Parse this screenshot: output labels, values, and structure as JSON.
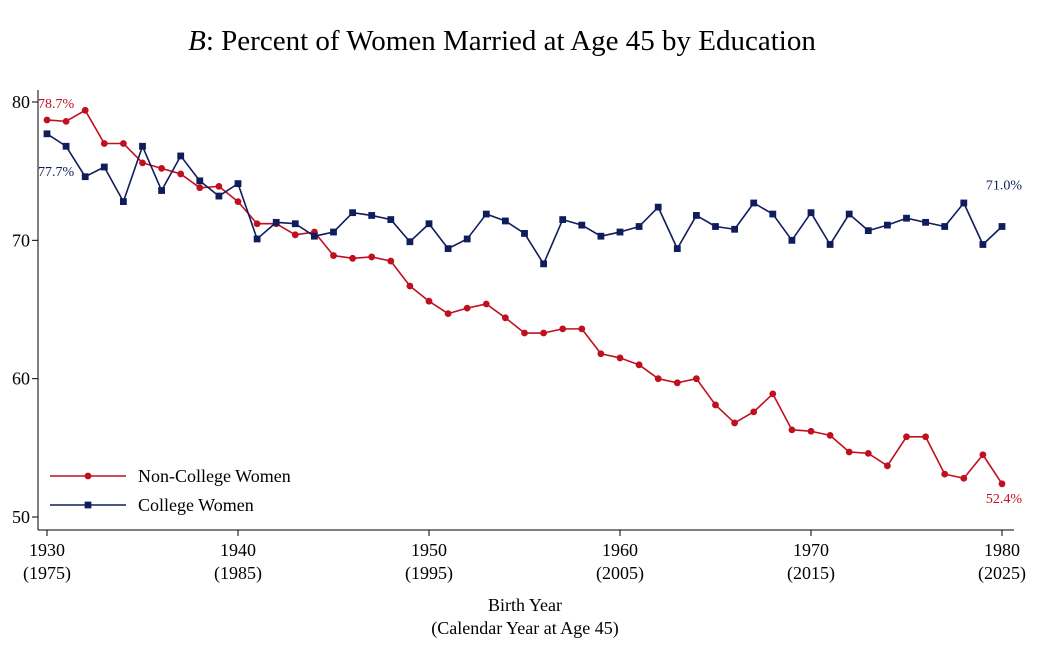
{
  "chart_data": {
    "type": "line",
    "title_prefix": "B",
    "title": ": Percent of Women Married at Age 45 by Education",
    "xlabel": "Birth Year",
    "xlabel_sub": "(Calendar Year at Age 45)",
    "ylabel": "",
    "xlim": [
      1930,
      1980
    ],
    "ylim": [
      50,
      80
    ],
    "x_ticks": [
      {
        "value": 1930,
        "label": "1930",
        "sublabel": "(1975)"
      },
      {
        "value": 1940,
        "label": "1940",
        "sublabel": "(1985)"
      },
      {
        "value": 1950,
        "label": "1950",
        "sublabel": "(1995)"
      },
      {
        "value": 1960,
        "label": "1960",
        "sublabel": "(2005)"
      },
      {
        "value": 1970,
        "label": "1970",
        "sublabel": "(2015)"
      },
      {
        "value": 1980,
        "label": "1980",
        "sublabel": "(2025)"
      }
    ],
    "y_ticks": [
      {
        "value": 50,
        "label": "50"
      },
      {
        "value": 60,
        "label": "60"
      },
      {
        "value": 70,
        "label": "70"
      },
      {
        "value": 80,
        "label": "80"
      }
    ],
    "grid": false,
    "legend_position": "bottom-left",
    "x": [
      1930,
      1931,
      1932,
      1933,
      1934,
      1935,
      1936,
      1937,
      1938,
      1939,
      1940,
      1941,
      1942,
      1943,
      1944,
      1945,
      1946,
      1947,
      1948,
      1949,
      1950,
      1951,
      1952,
      1953,
      1954,
      1955,
      1956,
      1957,
      1958,
      1959,
      1960,
      1961,
      1962,
      1963,
      1964,
      1965,
      1966,
      1967,
      1968,
      1969,
      1970,
      1971,
      1972,
      1973,
      1974,
      1975,
      1976,
      1977,
      1978,
      1979,
      1980
    ],
    "series": [
      {
        "name": "Non-College Women",
        "color": "#c0101f",
        "marker": "circle",
        "values": [
          78.7,
          78.6,
          79.4,
          77.0,
          77.0,
          75.6,
          75.2,
          74.8,
          73.8,
          73.9,
          72.8,
          71.2,
          71.2,
          70.4,
          70.6,
          68.9,
          68.7,
          68.8,
          68.5,
          66.7,
          65.6,
          64.7,
          65.1,
          65.4,
          64.4,
          63.3,
          63.3,
          63.6,
          63.6,
          61.8,
          61.5,
          61.0,
          60.0,
          59.7,
          60.0,
          58.1,
          56.8,
          57.6,
          58.9,
          56.3,
          56.2,
          55.9,
          54.7,
          54.6,
          53.7,
          55.8,
          55.8,
          53.1,
          52.8,
          54.5,
          52.4
        ],
        "start_label": "78.7%",
        "end_label": "52.4%"
      },
      {
        "name": "College Women",
        "color": "#101d5c",
        "marker": "square",
        "values": [
          77.7,
          76.8,
          74.6,
          75.3,
          72.8,
          76.8,
          73.6,
          76.1,
          74.3,
          73.2,
          74.1,
          70.1,
          71.3,
          71.2,
          70.3,
          70.6,
          72.0,
          71.8,
          71.5,
          69.9,
          71.2,
          69.4,
          70.1,
          71.9,
          71.4,
          70.5,
          68.3,
          71.5,
          71.1,
          70.3,
          70.6,
          71.0,
          72.4,
          69.4,
          71.8,
          71.0,
          70.8,
          72.7,
          71.9,
          70.0,
          72.0,
          69.7,
          71.9,
          70.7,
          71.1,
          71.6,
          71.3,
          71.0,
          72.7,
          69.7,
          71.0
        ],
        "start_label": "77.7%",
        "end_label": "71.0%"
      }
    ]
  }
}
